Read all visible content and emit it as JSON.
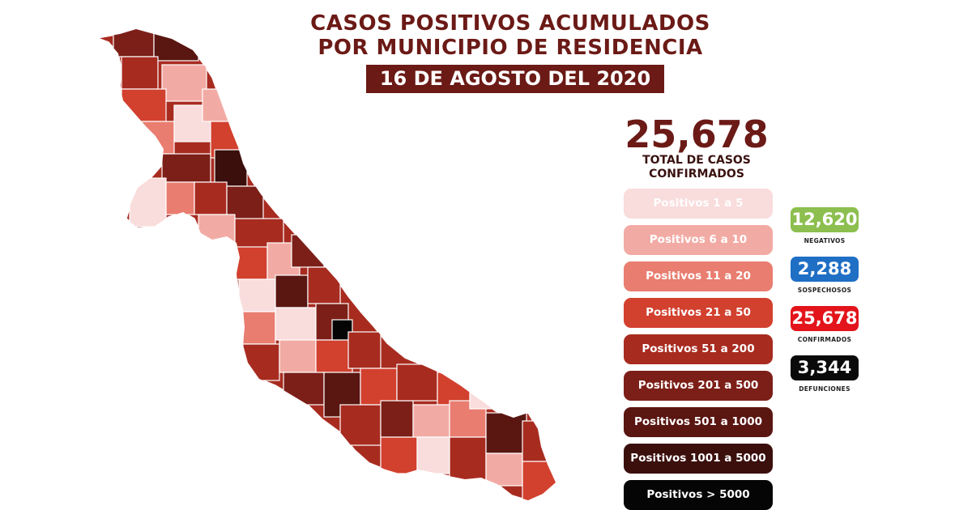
{
  "header": {
    "title_line1": "CASOS POSITIVOS ACUMULADOS",
    "title_line2": "POR MUNICIPIO DE RESIDENCIA",
    "date": "16 DE AGOSTO DEL 2020"
  },
  "total": {
    "value": "25,678",
    "label_line1": "TOTAL DE CASOS",
    "label_line2": "CONFIRMADOS"
  },
  "legend": [
    {
      "label": "Positivos 1 a 5",
      "color": "#f9dcdc",
      "text_color": "#ffffff"
    },
    {
      "label": "Positivos 6 a 10",
      "color": "#f2aba4",
      "text_color": "#ffffff"
    },
    {
      "label": "Positivos 11 a 20",
      "color": "#e97d70",
      "text_color": "#ffffff"
    },
    {
      "label": "Positivos 21 a 50",
      "color": "#d2402e",
      "text_color": "#ffffff"
    },
    {
      "label": "Positivos 51 a 200",
      "color": "#a82b20",
      "text_color": "#ffffff"
    },
    {
      "label": "Positivos 201 a 500",
      "color": "#7c1f18",
      "text_color": "#ffffff"
    },
    {
      "label": "Positivos 501 a 1000",
      "color": "#5a1611",
      "text_color": "#ffffff"
    },
    {
      "label": "Positivos 1001 a 5000",
      "color": "#3a0f0c",
      "text_color": "#ffffff"
    },
    {
      "label": "Positivos > 5000",
      "color": "#050505",
      "text_color": "#ffffff"
    }
  ],
  "stats": [
    {
      "value": "12,620",
      "label": "NEGATIVOS",
      "color": "#8cbf4f"
    },
    {
      "value": "2,288",
      "label": "SOSPECHOSOS",
      "color": "#1f6fc5"
    },
    {
      "value": "25,678",
      "label": "CONFIRMADOS",
      "color": "#e3141b"
    },
    {
      "value": "3,344",
      "label": "DEFUNCIONES",
      "color": "#0a0a0a"
    }
  ]
}
